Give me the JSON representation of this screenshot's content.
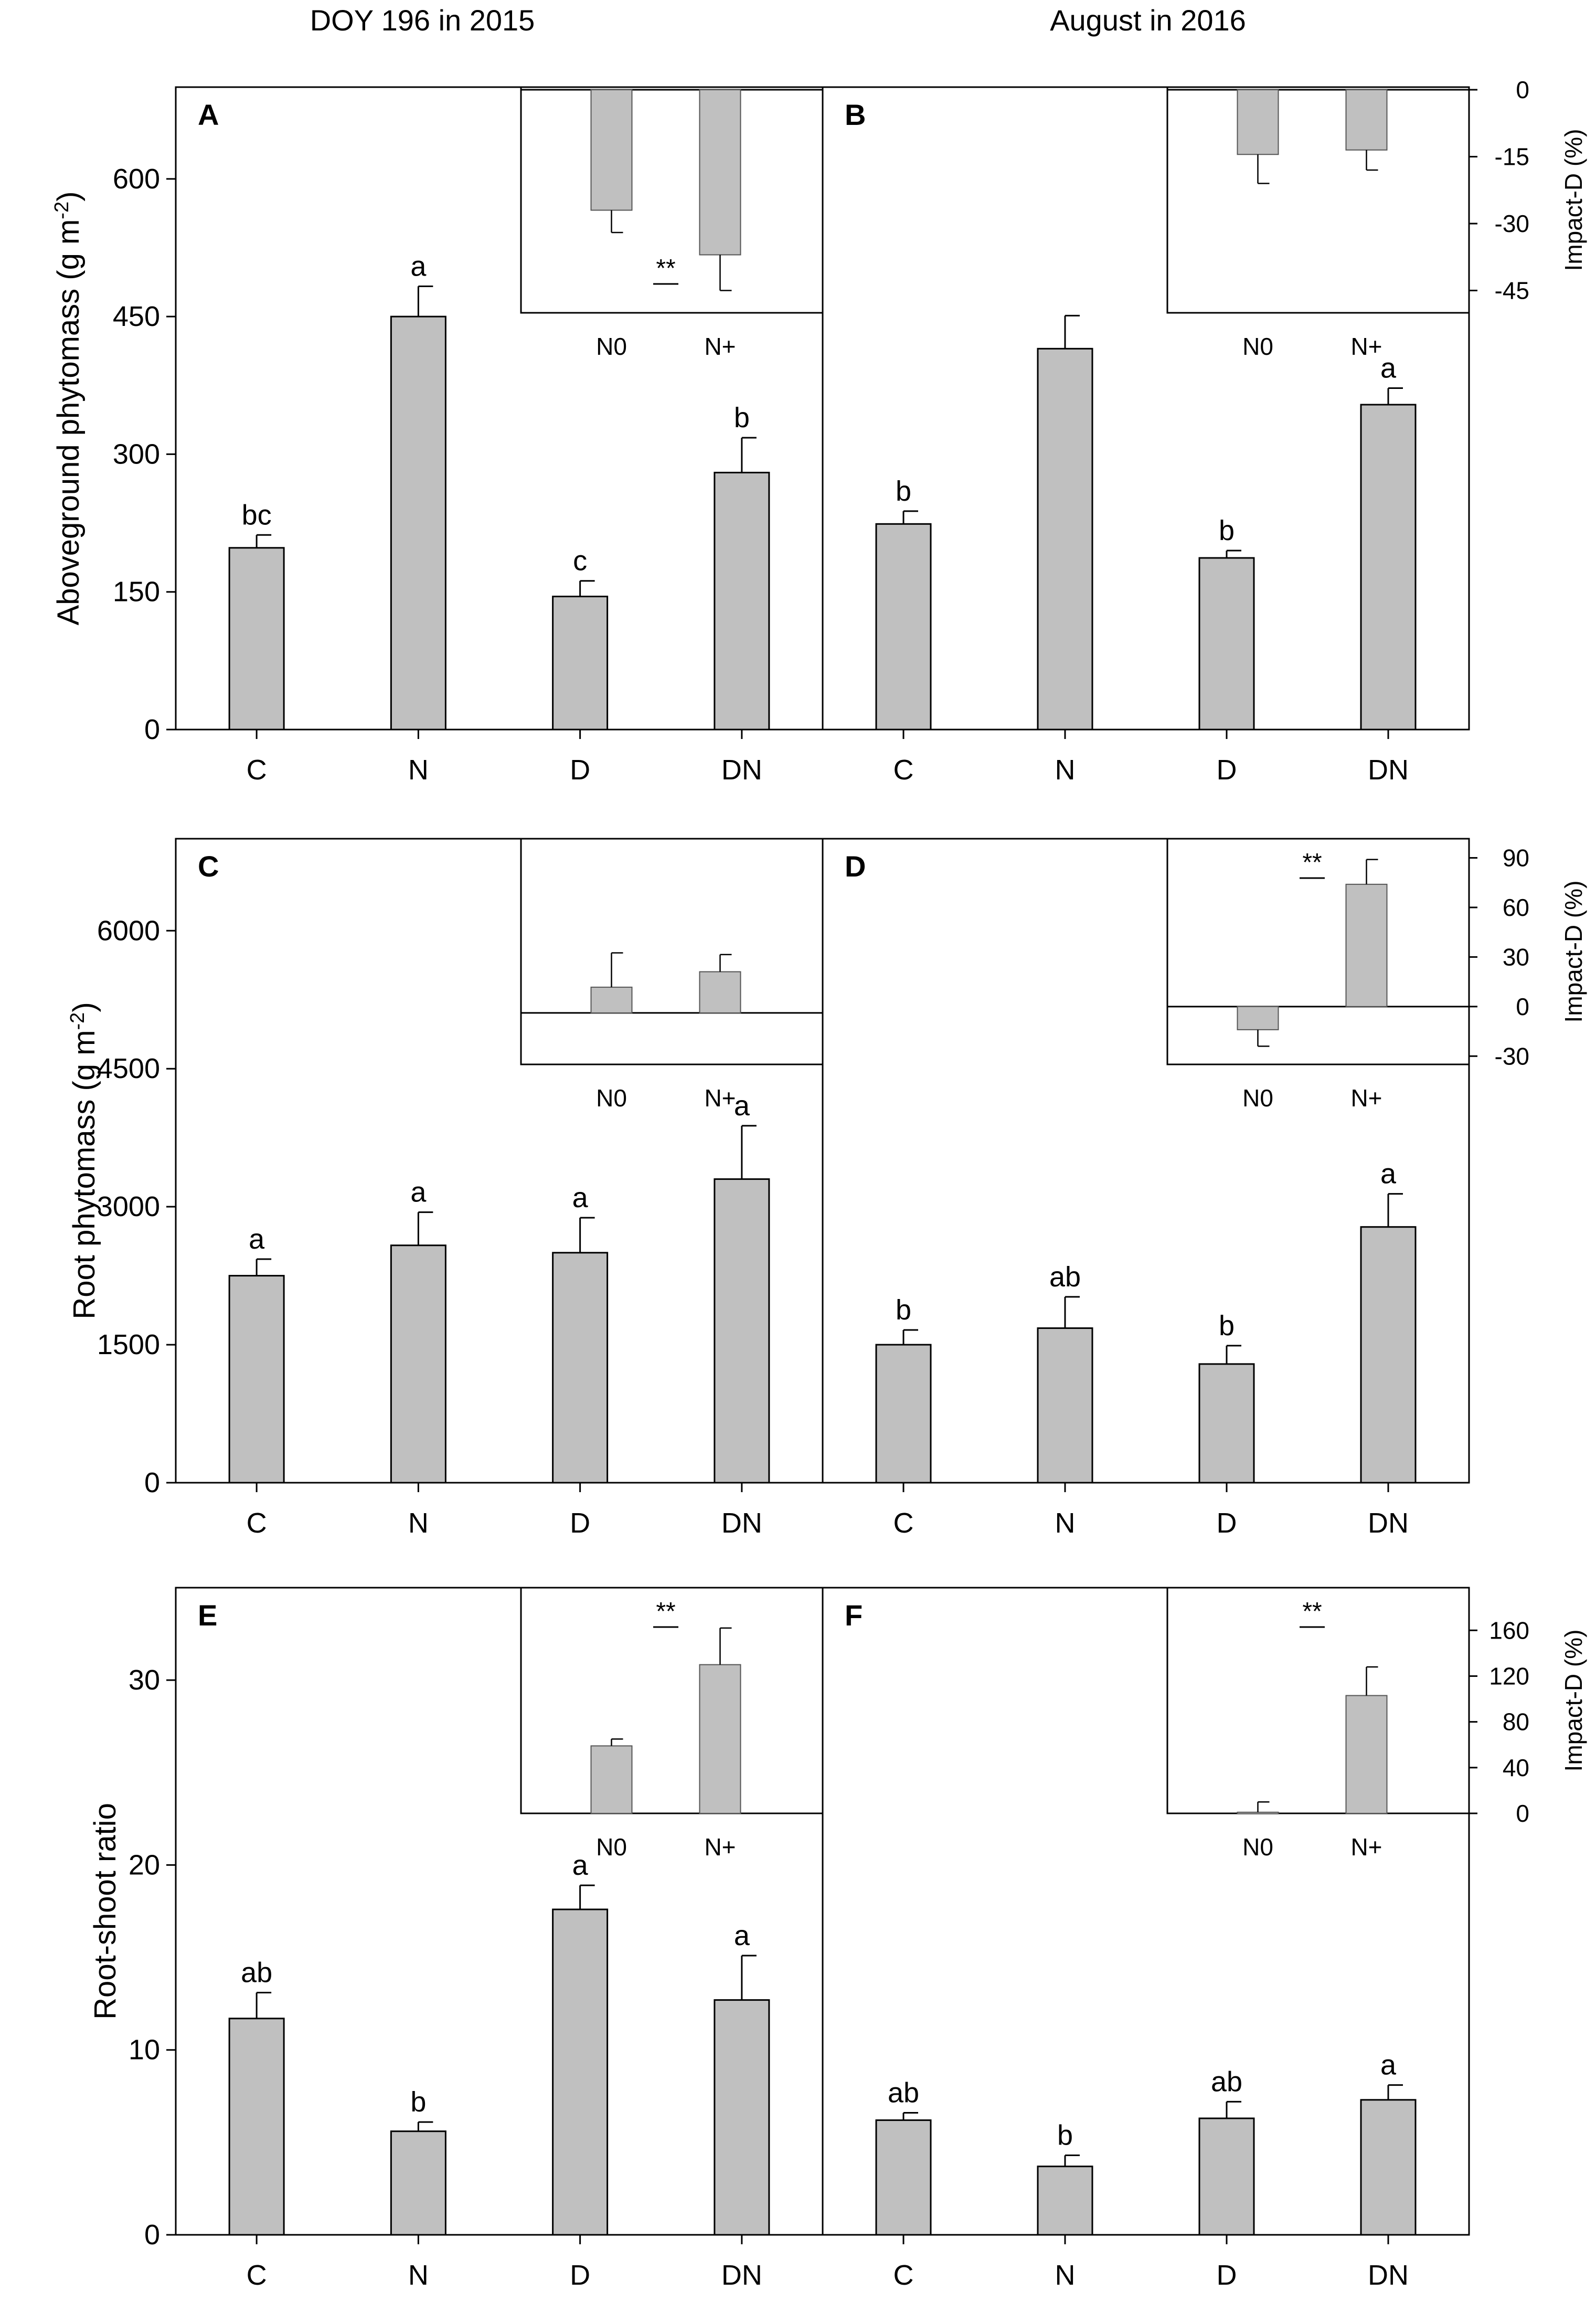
{
  "figure": {
    "column_titles": [
      "DOY 196 in 2015",
      "August in 2016"
    ],
    "bar_color": "#c0c0c0"
  },
  "chart_data": [
    {
      "panel": "A",
      "type": "bar",
      "title": "",
      "ylabel": "Aboveground phytomass (g m^-2)",
      "show_ylabel": true,
      "ylim": [
        0,
        700
      ],
      "yticks": [
        0,
        150,
        300,
        450,
        600
      ],
      "categories": [
        "C",
        "N",
        "D",
        "DN"
      ],
      "values": [
        198,
        450,
        145,
        280
      ],
      "errors": [
        14,
        33,
        17,
        38
      ],
      "letters": [
        "bc",
        "a",
        "c",
        "b"
      ],
      "inset": {
        "categories": [
          "N0",
          "N+"
        ],
        "values": [
          -27,
          -37
        ],
        "errors": [
          5,
          8
        ],
        "ylim": [
          -50,
          0
        ],
        "yticks": [],
        "ylabel": "Impact-D (%)",
        "show_axis": false,
        "significance": "**"
      }
    },
    {
      "panel": "B",
      "type": "bar",
      "title": "",
      "ylabel": "",
      "show_ylabel": false,
      "ylim": [
        0,
        700
      ],
      "yticks": [],
      "categories": [
        "C",
        "N",
        "D",
        "DN"
      ],
      "values": [
        224,
        415,
        187,
        354
      ],
      "errors": [
        14,
        36,
        8,
        18
      ],
      "letters": [
        "b",
        "",
        "b",
        "a"
      ],
      "inset": {
        "categories": [
          "N0",
          "N+"
        ],
        "values": [
          -14.5,
          -13.5
        ],
        "errors": [
          6.5,
          4.5
        ],
        "ylim": [
          -50,
          0
        ],
        "yticks": [
          0,
          -15,
          -30,
          -45
        ],
        "ylabel": "Impact-D (%)",
        "show_axis": true,
        "significance": ""
      }
    },
    {
      "panel": "C",
      "type": "bar",
      "title": "",
      "ylabel": "Root phytomass  (g m^-2)",
      "show_ylabel": true,
      "ylim": [
        0,
        7000
      ],
      "yticks": [
        0,
        1500,
        3000,
        4500,
        6000
      ],
      "categories": [
        "C",
        "N",
        "D",
        "DN"
      ],
      "values": [
        2250,
        2580,
        2500,
        3300
      ],
      "errors": [
        180,
        360,
        380,
        580
      ],
      "letters": [
        "a",
        "a",
        "a",
        "a"
      ],
      "inset": {
        "categories": [
          "N0",
          "N+"
        ],
        "values": [
          15,
          24
        ],
        "errors": [
          20,
          10
        ],
        "ylim": [
          -30,
          100
        ],
        "yticks": [],
        "ylabel": "Impact-D (%)",
        "show_axis": false,
        "significance": ""
      }
    },
    {
      "panel": "D",
      "type": "bar",
      "title": "",
      "ylabel": "",
      "show_ylabel": false,
      "ylim": [
        0,
        7000
      ],
      "yticks": [],
      "categories": [
        "C",
        "N",
        "D",
        "DN"
      ],
      "values": [
        1500,
        1680,
        1290,
        2780
      ],
      "errors": [
        160,
        340,
        200,
        360
      ],
      "letters": [
        "b",
        "ab",
        "b",
        "a"
      ],
      "inset": {
        "categories": [
          "N0",
          "N+"
        ],
        "values": [
          -14,
          74
        ],
        "errors": [
          10,
          15
        ],
        "ylim": [
          -35,
          100
        ],
        "yticks": [
          -30,
          0,
          30,
          60,
          90
        ],
        "ylabel": "Impact-D (%)",
        "show_axis": true,
        "significance": "**"
      }
    },
    {
      "panel": "E",
      "type": "bar",
      "title": "",
      "ylabel": "Root-shoot ratio",
      "show_ylabel": true,
      "ylim": [
        0,
        35
      ],
      "yticks": [
        0,
        10,
        20,
        30
      ],
      "categories": [
        "C",
        "N",
        "D",
        "DN"
      ],
      "values": [
        11.7,
        5.6,
        17.6,
        12.7
      ],
      "errors": [
        1.4,
        0.5,
        1.3,
        2.4
      ],
      "letters": [
        "ab",
        "b",
        "a",
        "a"
      ],
      "inset": {
        "categories": [
          "N0",
          "N+"
        ],
        "values": [
          59,
          130
        ],
        "errors": [
          6,
          32
        ],
        "ylim": [
          0,
          195
        ],
        "yticks": [],
        "ylabel": "Impact-D (%)",
        "show_axis": false,
        "significance": "**"
      }
    },
    {
      "panel": "F",
      "type": "bar",
      "title": "",
      "ylabel": "",
      "show_ylabel": false,
      "ylim": [
        0,
        35
      ],
      "yticks": [],
      "categories": [
        "C",
        "N",
        "D",
        "DN"
      ],
      "values": [
        6.2,
        3.7,
        6.3,
        7.3
      ],
      "errors": [
        0.4,
        0.6,
        0.9,
        0.8
      ],
      "letters": [
        "ab",
        "b",
        "ab",
        "a"
      ],
      "inset": {
        "categories": [
          "N0",
          "N+"
        ],
        "values": [
          1,
          103
        ],
        "errors": [
          9,
          25
        ],
        "ylim": [
          0,
          195
        ],
        "yticks": [
          0,
          40,
          80,
          120,
          160
        ],
        "ylabel": "Impact-D (%)",
        "show_axis": true,
        "significance": "**"
      }
    }
  ]
}
